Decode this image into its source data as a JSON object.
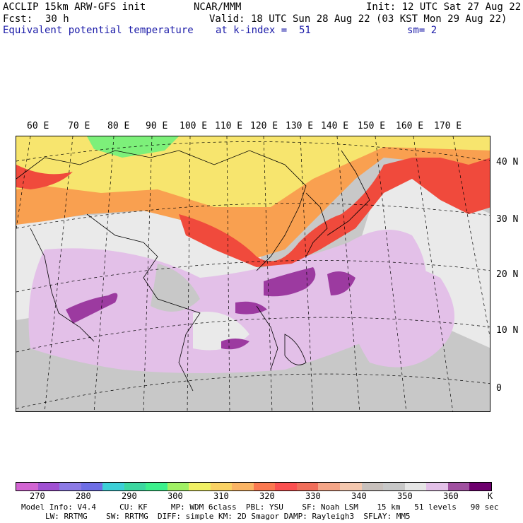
{
  "header": {
    "model": "ACCLIP 15km ARW-GFS init",
    "org": "NCAR/MMM",
    "init": "Init: 12 UTC Sat 27 Aug 22",
    "fcst_label": "Fcst:",
    "fcst_value": "30 h",
    "valid": "Valid: 18 UTC Sun 28 Aug 22 (03 KST Mon 29 Aug 22)",
    "field": "Equivalent potential temperature",
    "level": "at k-index =  51",
    "smooth": "sm= 2"
  },
  "map": {
    "lon_labels": [
      "60 E",
      "70 E",
      "80 E",
      "90 E",
      "100 E",
      "110 E",
      "120 E",
      "130 E",
      "140 E",
      "150 E",
      "160 E",
      "170 E"
    ],
    "lat_labels": [
      "40 N",
      "30 N",
      "20 N",
      "10 N",
      "0"
    ],
    "colors": {
      "ocean_gray": "#c8c8c8",
      "light_gray": "#eaeaea",
      "warm_yellow": "#f7e56e",
      "orange": "#f9a050",
      "red": "#f04a3c",
      "lavender": "#e3c0e8",
      "purple": "#9c3aa0",
      "green": "#7df07a"
    }
  },
  "colorbar": {
    "colors": [
      "#d264d2",
      "#a050d2",
      "#8c7ae6",
      "#6e6ee6",
      "#3ccfd7",
      "#3cd7a0",
      "#3cf08c",
      "#a0f064",
      "#f0f064",
      "#fad264",
      "#fab464",
      "#fa7850",
      "#fa5050",
      "#f06e5a",
      "#f5a587",
      "#f5c8af",
      "#c8c0bc",
      "#c8c8c8",
      "#e6e6e6",
      "#e3c0e8",
      "#a050a0",
      "#6e006e"
    ],
    "ticks": [
      "270",
      "280",
      "290",
      "300",
      "310",
      "320",
      "330",
      "340",
      "350",
      "360"
    ],
    "unit": "K"
  },
  "footer": {
    "line1": "Model Info: V4.4     CU: KF     MP: WDM 6class  PBL: YSU    SF: Noah LSM    15 km   51 levels   90 sec",
    "line2": "LW: RRTMG    SW: RRTMG  DIFF: simple KM: 2D Smagor DAMP: Rayleigh3  SFLAY: MM5"
  }
}
